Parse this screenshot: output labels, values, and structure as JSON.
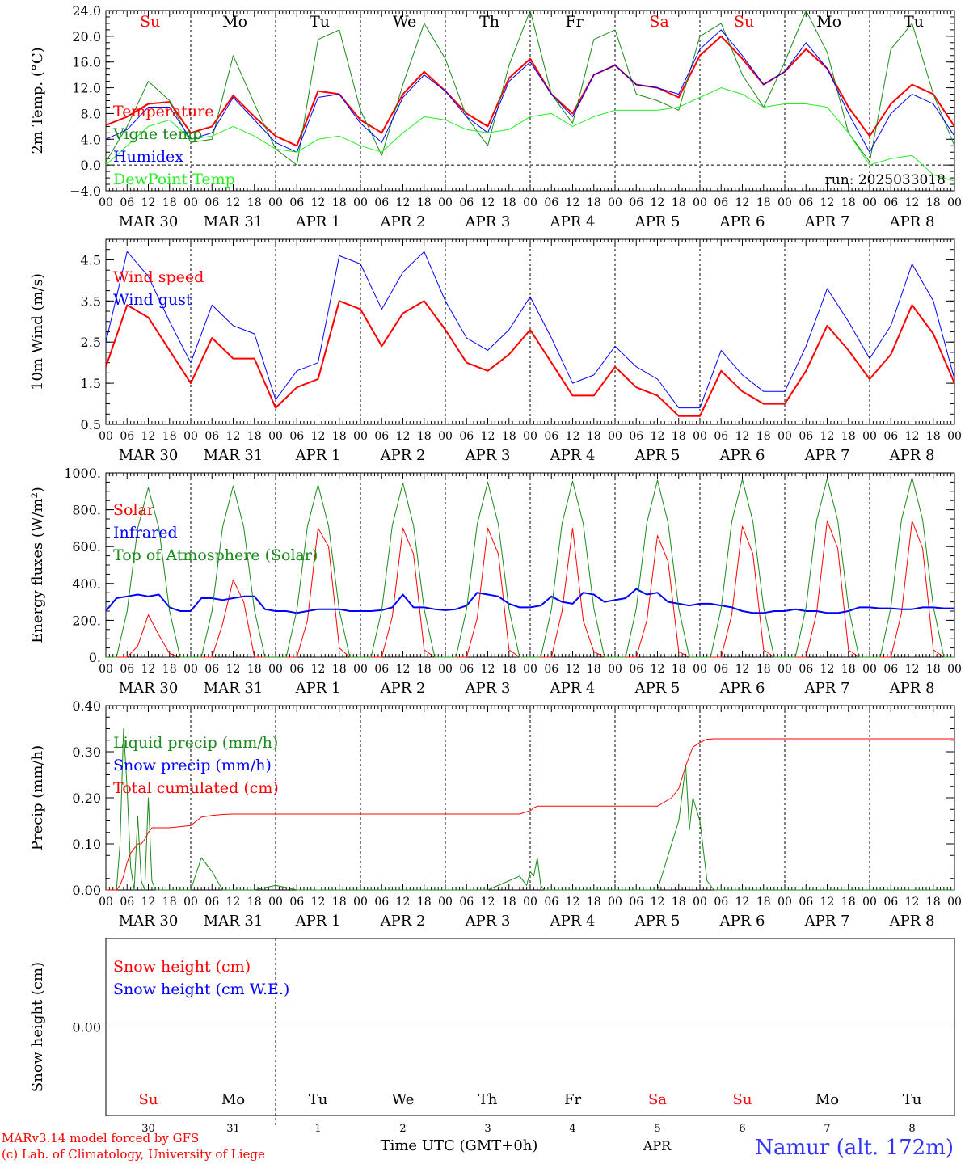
{
  "colors": {
    "red": "#ff0000",
    "darkgreen": "#1a8a1a",
    "blue": "#0000ff",
    "lightgreen": "#22ee22",
    "black": "#000000",
    "sunday_sat": "#ff0000"
  },
  "day_labels": [
    {
      "text": "Su",
      "red": true
    },
    {
      "text": "Mo",
      "red": false
    },
    {
      "text": "Tu",
      "red": false
    },
    {
      "text": "We",
      "red": false
    },
    {
      "text": "Th",
      "red": false
    },
    {
      "text": "Fr",
      "red": false
    },
    {
      "text": "Sa",
      "red": true
    },
    {
      "text": "Su",
      "red": true
    },
    {
      "text": "Mo",
      "red": false
    },
    {
      "text": "Tu",
      "red": false
    }
  ],
  "date_labels": [
    "MAR 30",
    "MAR 31",
    "APR  1",
    "APR  2",
    "APR  3",
    "APR  4",
    "APR  5",
    "APR  6",
    "APR  7",
    "APR  8"
  ],
  "hour_ticks": [
    "00",
    "06",
    "12",
    "18"
  ],
  "hour_end": "00",
  "bottom_day_numbers": [
    "30",
    "31",
    "1",
    "2",
    "3",
    "4",
    "5",
    "6",
    "7",
    "8"
  ],
  "footer": {
    "model_line": "MARv3.14 model forced by GFS",
    "lab_line": "(c) Lab. of Climatology, University of Liege",
    "xlabel": "Time UTC (GMT+0h)",
    "month": "APR",
    "station": "Namur (alt. 172m)"
  },
  "chart_data": [
    {
      "type": "line",
      "id": "temperature",
      "ylabel": "2m Temp. (°C)",
      "ylim": [
        -4,
        24
      ],
      "yticks": [
        "−4.0",
        "0.0",
        "4.0",
        "8.0",
        "12.0",
        "16.0",
        "20.0",
        "24.0"
      ],
      "ytick_values": [
        -4,
        0,
        4,
        8,
        12,
        16,
        20,
        24
      ],
      "zero_line": true,
      "annotation": "run: 2025033018",
      "legend": [
        {
          "label": "Temperature",
          "color": "red"
        },
        {
          "label": "Vigne temp",
          "color": "darkgreen"
        },
        {
          "label": "Humidex",
          "color": "blue"
        },
        {
          "label": "DewPoint Temp",
          "color": "lightgreen"
        }
      ],
      "x_hours": [
        0,
        6,
        12,
        18,
        24,
        30,
        36,
        42,
        48,
        54,
        60,
        66,
        72,
        78,
        84,
        90,
        96,
        102,
        108,
        114,
        120,
        126,
        132,
        138,
        144,
        150,
        156,
        162,
        168,
        174,
        180,
        186,
        192,
        198,
        204,
        210,
        216,
        222,
        228,
        234,
        240
      ],
      "series": [
        {
          "name": "Temperature",
          "color": "red",
          "width": 2,
          "values": [
            6.2,
            7.5,
            9.5,
            9.8,
            5.0,
            6.0,
            10.8,
            7.5,
            4.5,
            3.0,
            11.5,
            11.0,
            7.0,
            5.0,
            11.0,
            14.5,
            11.5,
            8.0,
            6.0,
            13.5,
            16.5,
            11.0,
            8.0,
            14.0,
            15.5,
            12.5,
            12.0,
            10.5,
            17.0,
            20.0,
            16.5,
            12.5,
            14.5,
            18.0,
            15.0,
            9.0,
            4.5,
            9.5,
            12.5,
            11.0,
            6.0
          ]
        },
        {
          "name": "Vigne temp",
          "color": "darkgreen",
          "width": 1,
          "values": [
            0.5,
            6.0,
            13.0,
            10.0,
            3.5,
            4.0,
            17.0,
            9.5,
            2.5,
            0.0,
            19.5,
            21.0,
            8.5,
            1.5,
            12.5,
            22.0,
            16.5,
            7.5,
            3.0,
            15.5,
            24.0,
            11.0,
            6.5,
            19.5,
            21.0,
            11.0,
            10.0,
            8.5,
            20.0,
            22.0,
            14.0,
            9.0,
            16.0,
            24.0,
            17.5,
            5.0,
            0.5,
            18.0,
            22.0,
            11.0,
            3.0
          ]
        },
        {
          "name": "Humidex",
          "color": "blue",
          "width": 1,
          "values": [
            4.0,
            5.5,
            9.0,
            9.0,
            4.0,
            5.0,
            10.5,
            7.0,
            3.5,
            2.0,
            10.5,
            11.0,
            6.5,
            3.5,
            10.5,
            14.0,
            11.5,
            7.5,
            5.0,
            13.0,
            16.0,
            11.0,
            7.5,
            14.0,
            15.5,
            12.5,
            12.0,
            11.0,
            18.0,
            21.0,
            17.0,
            12.5,
            14.5,
            19.0,
            15.0,
            8.0,
            2.0,
            8.0,
            11.0,
            9.5,
            4.5
          ]
        },
        {
          "name": "DewPoint Temp",
          "color": "lightgreen",
          "width": 1,
          "values": [
            0.0,
            3.0,
            6.0,
            7.0,
            4.0,
            4.5,
            6.0,
            4.5,
            2.5,
            2.0,
            4.0,
            4.5,
            3.0,
            2.0,
            5.0,
            7.5,
            7.0,
            5.5,
            5.0,
            5.5,
            7.5,
            8.0,
            6.0,
            7.5,
            8.5,
            8.5,
            8.5,
            9.0,
            10.5,
            12.0,
            11.0,
            9.0,
            9.5,
            9.5,
            9.0,
            5.0,
            0.0,
            1.0,
            1.5,
            -1.5,
            -2.5
          ]
        }
      ]
    },
    {
      "type": "line",
      "id": "wind",
      "ylabel": "10m Wind (m/s)",
      "ylim": [
        0.5,
        5.0
      ],
      "yticks": [
        "0.5",
        "1.5",
        "2.5",
        "3.5",
        "4.5"
      ],
      "ytick_values": [
        0.5,
        1.5,
        2.5,
        3.5,
        4.5
      ],
      "legend": [
        {
          "label": "Wind speed",
          "color": "red"
        },
        {
          "label": "Wind gust",
          "color": "blue"
        }
      ],
      "x_hours": [
        0,
        6,
        12,
        18,
        24,
        30,
        36,
        42,
        48,
        54,
        60,
        66,
        72,
        78,
        84,
        90,
        96,
        102,
        108,
        114,
        120,
        126,
        132,
        138,
        144,
        150,
        156,
        162,
        168,
        174,
        180,
        186,
        192,
        198,
        204,
        210,
        216,
        222,
        228,
        234,
        240
      ],
      "series": [
        {
          "name": "Wind speed",
          "color": "red",
          "width": 2,
          "values": [
            1.9,
            3.4,
            3.1,
            2.3,
            1.5,
            2.6,
            2.1,
            2.1,
            0.9,
            1.4,
            1.6,
            3.5,
            3.3,
            2.4,
            3.2,
            3.5,
            2.8,
            2.0,
            1.8,
            2.2,
            2.8,
            2.0,
            1.2,
            1.2,
            1.9,
            1.4,
            1.2,
            0.7,
            0.7,
            1.8,
            1.3,
            1.0,
            1.0,
            1.8,
            2.9,
            2.3,
            1.6,
            2.2,
            3.4,
            2.7,
            1.5
          ]
        },
        {
          "name": "Wind gust",
          "color": "blue",
          "width": 1,
          "values": [
            2.5,
            4.7,
            4.1,
            3.0,
            2.0,
            3.4,
            2.9,
            2.7,
            1.1,
            1.8,
            2.0,
            4.6,
            4.4,
            3.3,
            4.2,
            4.7,
            3.5,
            2.6,
            2.3,
            2.8,
            3.6,
            2.6,
            1.5,
            1.7,
            2.4,
            1.9,
            1.6,
            0.9,
            0.9,
            2.3,
            1.7,
            1.3,
            1.3,
            2.4,
            3.8,
            3.0,
            2.1,
            2.9,
            4.4,
            3.5,
            1.6
          ]
        }
      ]
    },
    {
      "type": "line",
      "id": "energy",
      "ylabel": "Energy fluxes (W/m²)",
      "ylim": [
        0,
        1000
      ],
      "yticks": [
        "0.",
        "200.",
        "400.",
        "600.",
        "800.",
        "1000."
      ],
      "ytick_values": [
        0,
        200,
        400,
        600,
        800,
        1000
      ],
      "legend": [
        {
          "label": "Solar",
          "color": "red"
        },
        {
          "label": "Infrared",
          "color": "blue"
        },
        {
          "label": "Top of Atmosphere (Solar)",
          "color": "darkgreen"
        }
      ],
      "x_hours": [
        0,
        3,
        6,
        9,
        12,
        15,
        18,
        21,
        24,
        27,
        30,
        33,
        36,
        39,
        42,
        45,
        48,
        51,
        54,
        57,
        60,
        63,
        66,
        69,
        72,
        75,
        78,
        81,
        84,
        87,
        90,
        93,
        96,
        99,
        102,
        105,
        108,
        111,
        114,
        117,
        120,
        123,
        126,
        129,
        132,
        135,
        138,
        141,
        144,
        147,
        150,
        153,
        156,
        159,
        162,
        165,
        168,
        171,
        174,
        177,
        180,
        183,
        186,
        189,
        192,
        195,
        198,
        201,
        204,
        207,
        210,
        213,
        216,
        219,
        222,
        225,
        228,
        231,
        234,
        237,
        240
      ],
      "series": [
        {
          "name": "Solar",
          "color": "red",
          "width": 1,
          "values": [
            0,
            0,
            0,
            60,
            230,
            120,
            20,
            0,
            0,
            0,
            0,
            180,
            420,
            300,
            0,
            0,
            0,
            0,
            0,
            200,
            700,
            600,
            50,
            0,
            0,
            0,
            0,
            220,
            700,
            560,
            40,
            0,
            0,
            0,
            0,
            210,
            700,
            560,
            40,
            0,
            0,
            0,
            0,
            250,
            700,
            200,
            30,
            0,
            0,
            0,
            0,
            200,
            660,
            520,
            30,
            0,
            0,
            0,
            0,
            230,
            710,
            560,
            40,
            0,
            0,
            0,
            0,
            240,
            740,
            590,
            40,
            0,
            0,
            0,
            0,
            240,
            740,
            590,
            40,
            0,
            0
          ]
        },
        {
          "name": "Infrared",
          "color": "blue",
          "width": 2,
          "values": [
            250,
            320,
            330,
            340,
            330,
            340,
            270,
            250,
            250,
            320,
            320,
            310,
            320,
            330,
            330,
            260,
            250,
            250,
            240,
            250,
            260,
            260,
            260,
            250,
            250,
            250,
            255,
            270,
            340,
            270,
            270,
            260,
            255,
            260,
            280,
            350,
            340,
            330,
            290,
            270,
            270,
            280,
            330,
            300,
            290,
            350,
            340,
            300,
            310,
            320,
            370,
            340,
            350,
            300,
            290,
            280,
            290,
            290,
            280,
            270,
            250,
            240,
            240,
            250,
            250,
            260,
            250,
            250,
            240,
            240,
            250,
            270,
            270,
            265,
            265,
            260,
            260,
            270,
            270,
            265,
            265
          ]
        },
        {
          "name": "Top of Atmosphere (Solar)",
          "color": "darkgreen",
          "width": 1,
          "values": [
            0,
            0,
            250,
            700,
            920,
            700,
            250,
            0,
            0,
            0,
            250,
            705,
            930,
            705,
            255,
            0,
            0,
            0,
            255,
            710,
            935,
            710,
            255,
            0,
            0,
            0,
            255,
            715,
            945,
            715,
            260,
            0,
            0,
            0,
            260,
            720,
            950,
            720,
            260,
            0,
            0,
            0,
            260,
            725,
            955,
            725,
            265,
            0,
            0,
            0,
            265,
            730,
            960,
            730,
            265,
            0,
            0,
            0,
            265,
            735,
            965,
            735,
            270,
            0,
            0,
            0,
            270,
            740,
            970,
            740,
            270,
            0,
            0,
            0,
            270,
            745,
            975,
            745,
            275,
            0,
            0
          ]
        }
      ]
    },
    {
      "type": "line",
      "id": "precip",
      "ylabel": "Precip (mm/h)",
      "ylim": [
        0,
        0.4
      ],
      "yticks": [
        "0.00",
        "0.10",
        "0.20",
        "0.30",
        "0.40"
      ],
      "ytick_values": [
        0,
        0.1,
        0.2,
        0.3,
        0.4
      ],
      "legend": [
        {
          "label": "Liquid precip (mm/h)",
          "color": "darkgreen"
        },
        {
          "label": "Snow precip (mm/h)",
          "color": "blue"
        },
        {
          "label": "Total cumulated (cm)",
          "color": "red"
        }
      ],
      "x_hours": [
        0,
        3,
        4,
        5,
        6,
        7,
        8,
        9,
        10,
        11,
        12,
        13,
        14,
        15,
        16,
        18,
        24,
        27,
        30,
        33,
        36,
        42,
        48,
        54,
        60,
        96,
        108,
        117,
        119,
        120,
        121,
        122,
        123,
        124,
        126,
        150,
        156,
        160,
        162,
        164,
        165,
        166,
        168,
        170,
        172,
        174,
        240
      ],
      "series": [
        {
          "name": "Liquid precip (mm/h)",
          "color": "darkgreen",
          "width": 1,
          "values": [
            0,
            0,
            0.1,
            0.35,
            0.22,
            0.05,
            0,
            0.16,
            0.02,
            0,
            0.2,
            0.02,
            0,
            0,
            0,
            0,
            0,
            0.07,
            0.04,
            0,
            0,
            0,
            0.01,
            0,
            0,
            0,
            0,
            0.03,
            0.01,
            0.04,
            0.03,
            0.07,
            0.01,
            0,
            0,
            0,
            0,
            0.1,
            0.15,
            0.27,
            0.13,
            0.2,
            0.15,
            0.02,
            0,
            0,
            0
          ]
        },
        {
          "name": "Total cumulated (cm)",
          "color": "red",
          "width": 1,
          "values": [
            0,
            0,
            0.01,
            0.03,
            0.06,
            0.08,
            0.09,
            0.1,
            0.1,
            0.11,
            0.125,
            0.135,
            0.135,
            0.135,
            0.135,
            0.135,
            0.14,
            0.158,
            0.162,
            0.164,
            0.165,
            0.165,
            0.165,
            0.165,
            0.165,
            0.165,
            0.165,
            0.165,
            0.17,
            0.172,
            0.178,
            0.182,
            0.182,
            0.182,
            0.182,
            0.182,
            0.182,
            0.2,
            0.22,
            0.27,
            0.29,
            0.31,
            0.32,
            0.327,
            0.328,
            0.328,
            0.328
          ]
        }
      ]
    },
    {
      "type": "line",
      "id": "snow",
      "ylabel": "Snow height (cm)",
      "yticks": [
        "0.00"
      ],
      "legend": [
        {
          "label": "Snow height (cm)",
          "color": "red"
        },
        {
          "label": "Snow height (cm W.E.)",
          "color": "blue"
        }
      ],
      "x_hours": [
        0,
        240
      ],
      "series": [
        {
          "name": "Snow height (cm)",
          "color": "red",
          "width": 1,
          "values": [
            0,
            0
          ]
        }
      ]
    }
  ]
}
